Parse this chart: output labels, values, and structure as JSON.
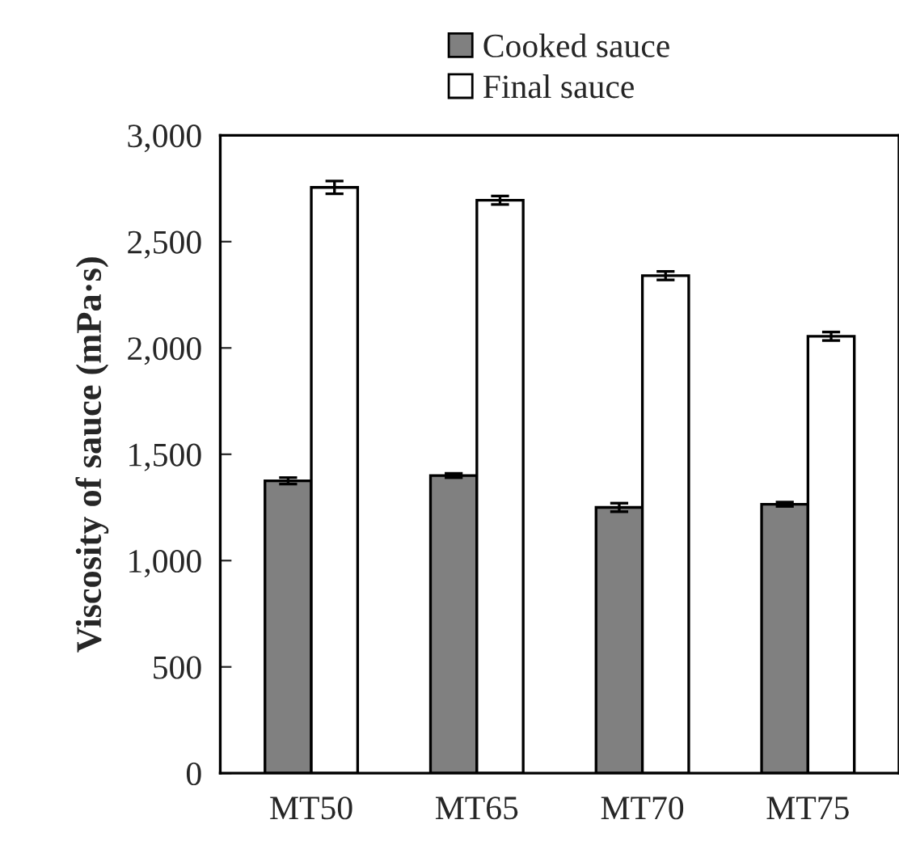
{
  "chart_data": {
    "type": "bar",
    "ylabel": "Viscosity of sauce (mPa·s)",
    "categories": [
      "MT50",
      "MT65",
      "MT70",
      "MT75"
    ],
    "series": [
      {
        "name": "Cooked sauce",
        "color": "#808080",
        "values": [
          1375,
          1400,
          1250,
          1265
        ],
        "errors": [
          15,
          10,
          20,
          10
        ]
      },
      {
        "name": "Final sauce",
        "color": "#ffffff",
        "values": [
          2755,
          2695,
          2340,
          2055
        ],
        "errors": [
          30,
          20,
          20,
          20
        ]
      }
    ],
    "ylim": [
      0,
      3000
    ],
    "yticks": [
      {
        "value": 0,
        "label": "0"
      },
      {
        "value": 500,
        "label": "500"
      },
      {
        "value": 1000,
        "label": "1,000"
      },
      {
        "value": 1500,
        "label": "1,500"
      },
      {
        "value": 2000,
        "label": "2,000"
      },
      {
        "value": 2500,
        "label": "2,500"
      },
      {
        "value": 3000,
        "label": "3,000"
      }
    ],
    "grid": false,
    "legend": "top"
  }
}
